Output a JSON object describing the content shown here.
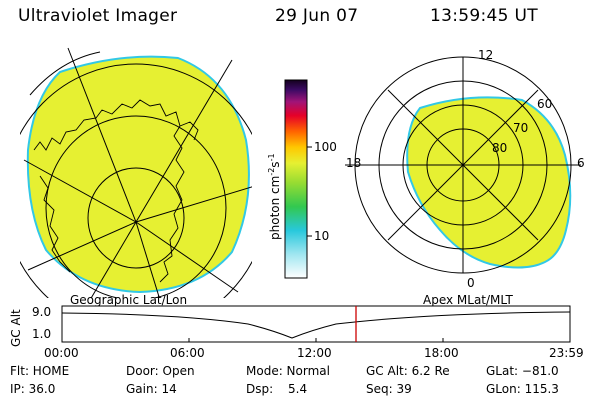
{
  "header": {
    "title": "Ultraviolet Imager",
    "date": "29 Jun 07",
    "time": "13:59:45 UT"
  },
  "colorbar": {
    "unit_main": "photon cm",
    "unit_sup1": "-2",
    "unit_mid": "s",
    "unit_sup2": "-1",
    "ticks": [
      "100",
      "10"
    ]
  },
  "polar": {
    "mlt_top": "12",
    "mlt_left": "18",
    "mlt_right": "6",
    "mlt_bottom": "0",
    "lat_60": "60",
    "lat_70": "70",
    "lat_80": "80"
  },
  "panels": {
    "left_label": "Geographic Lat/Lon",
    "right_label": "Apex MLat/MLT"
  },
  "altplot": {
    "ylabel": "GC Alt",
    "ytick_top": "9.0",
    "ytick_bottom": "1.0",
    "xticks": [
      "00:00",
      "06:00",
      "12:00",
      "18:00",
      "23:59"
    ],
    "marker_color": "#cc0000"
  },
  "info": {
    "flt": "Flt: HOME",
    "ip": "IP: 36.0",
    "door": "Door: Open",
    "gain": "Gain: 14",
    "mode": "Mode: Normal",
    "dsp_label": "Dsp:",
    "dsp_value": "5.4",
    "gcalt": "GC Alt: 6.2 Re",
    "seq": "Seq: 39",
    "glat": "GLat: −81.0",
    "glon": "GLon: 115.3"
  },
  "colors": {
    "emission": "#e6f032",
    "edge": "#32c8e6",
    "background": "#ffffff"
  }
}
